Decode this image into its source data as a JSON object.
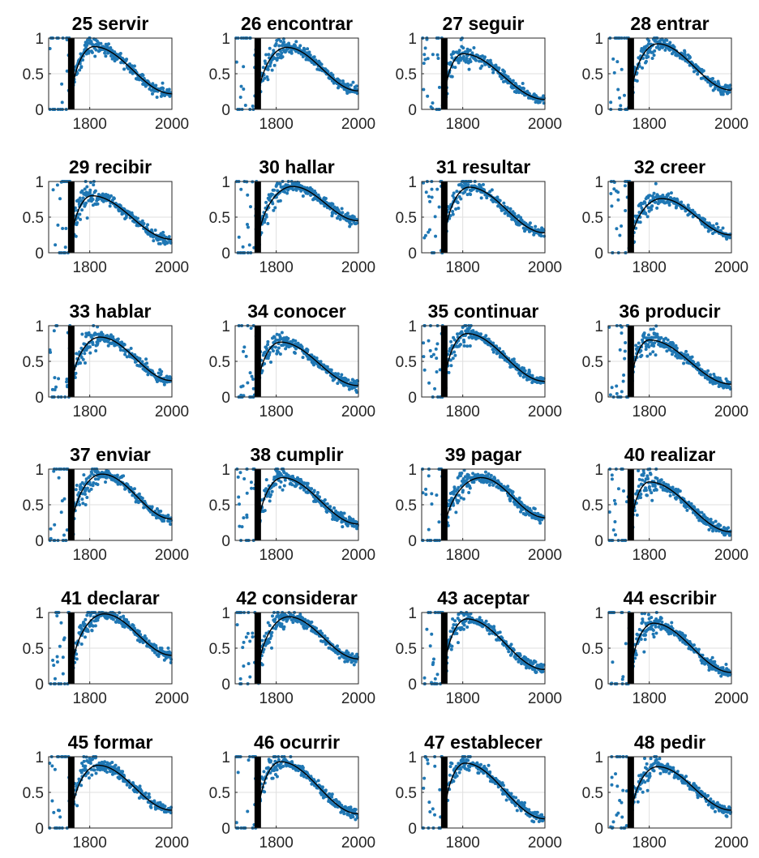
{
  "chart_data": {
    "type": "scatter",
    "rows": 6,
    "cols": 4,
    "shared_axes": {
      "xlim": [
        1700,
        2000
      ],
      "ylim": [
        0,
        1
      ],
      "xticks": [
        1800,
        2000
      ],
      "yticks": [
        0,
        0.5,
        1
      ],
      "ytick_labels": [
        "0",
        "0.5",
        "1"
      ],
      "grid": true,
      "vertical_marker_x": 1755
    },
    "colors": {
      "points": "#1f77b4",
      "fit": "#000000",
      "marker": "#000000",
      "grid": "#dfdfdf",
      "axes": "#262626"
    },
    "panels": [
      {
        "title": "25 servir",
        "fit": {
          "peak_year": 1810,
          "peak": 0.88,
          "end": 0.22
        }
      },
      {
        "title": "26 encontrar",
        "fit": {
          "peak_year": 1825,
          "peak": 0.87,
          "end": 0.26
        }
      },
      {
        "title": "27 seguir",
        "fit": {
          "peak_year": 1800,
          "peak": 0.78,
          "end": 0.14
        }
      },
      {
        "title": "28 entrar",
        "fit": {
          "peak_year": 1820,
          "peak": 0.92,
          "end": 0.27
        }
      },
      {
        "title": "29 recibir",
        "fit": {
          "peak_year": 1805,
          "peak": 0.8,
          "end": 0.19
        }
      },
      {
        "title": "30 hallar",
        "fit": {
          "peak_year": 1840,
          "peak": 0.93,
          "end": 0.45
        }
      },
      {
        "title": "31 resultar",
        "fit": {
          "peak_year": 1815,
          "peak": 0.92,
          "end": 0.28
        }
      },
      {
        "title": "32 creer",
        "fit": {
          "peak_year": 1830,
          "peak": 0.76,
          "end": 0.25
        }
      },
      {
        "title": "33 hablar",
        "fit": {
          "peak_year": 1825,
          "peak": 0.84,
          "end": 0.23
        }
      },
      {
        "title": "34 conocer",
        "fit": {
          "peak_year": 1810,
          "peak": 0.77,
          "end": 0.16
        }
      },
      {
        "title": "35 continuar",
        "fit": {
          "peak_year": 1810,
          "peak": 0.89,
          "end": 0.22
        }
      },
      {
        "title": "36 producir",
        "fit": {
          "peak_year": 1800,
          "peak": 0.8,
          "end": 0.18
        }
      },
      {
        "title": "37 enviar",
        "fit": {
          "peak_year": 1830,
          "peak": 0.93,
          "end": 0.3
        }
      },
      {
        "title": "38 cumplir",
        "fit": {
          "peak_year": 1815,
          "peak": 0.88,
          "end": 0.23
        }
      },
      {
        "title": "39 pagar",
        "fit": {
          "peak_year": 1845,
          "peak": 0.88,
          "end": 0.32
        }
      },
      {
        "title": "40 realizar",
        "fit": {
          "peak_year": 1800,
          "peak": 0.82,
          "end": 0.12
        }
      },
      {
        "title": "41 declarar",
        "fit": {
          "peak_year": 1835,
          "peak": 0.98,
          "end": 0.4
        }
      },
      {
        "title": "42 considerar",
        "fit": {
          "peak_year": 1830,
          "peak": 0.94,
          "end": 0.35
        }
      },
      {
        "title": "43 aceptar",
        "fit": {
          "peak_year": 1810,
          "peak": 0.91,
          "end": 0.2
        }
      },
      {
        "title": "44 escribir",
        "fit": {
          "peak_year": 1810,
          "peak": 0.85,
          "end": 0.16
        }
      },
      {
        "title": "45 formar",
        "fit": {
          "peak_year": 1820,
          "peak": 0.88,
          "end": 0.25
        }
      },
      {
        "title": "46 ocurrir",
        "fit": {
          "peak_year": 1810,
          "peak": 0.93,
          "end": 0.2
        }
      },
      {
        "title": "47 establecer",
        "fit": {
          "peak_year": 1805,
          "peak": 0.91,
          "end": 0.13
        }
      },
      {
        "title": "48 pedir",
        "fit": {
          "peak_year": 1820,
          "peak": 0.86,
          "end": 0.25
        }
      }
    ]
  }
}
